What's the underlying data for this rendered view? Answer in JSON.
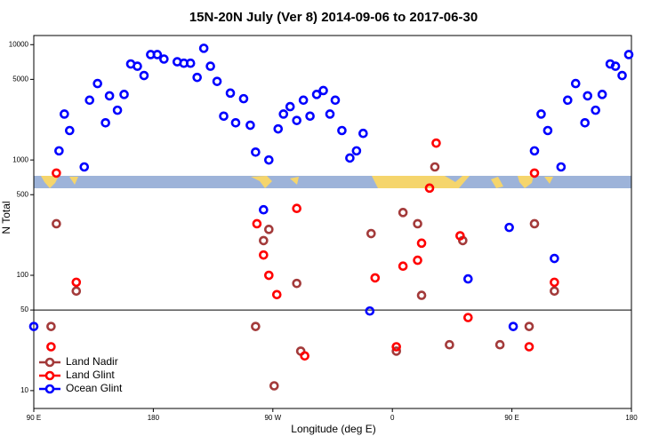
{
  "chart_data": {
    "type": "scatter",
    "title": "15N-20N July (Ver 8)   2014-09-06 to 2017-06-30",
    "x_label": "Longitude (deg E)",
    "y_label": "N Total",
    "ylog": true,
    "legend": "bottom-left",
    "xlim": [
      90,
      540
    ],
    "ylim": [
      7,
      12000
    ],
    "xticks": [
      {
        "value": 90,
        "label": "90 E"
      },
      180,
      {
        "value": 270,
        "label": "90 W"
      },
      {
        "value": 360,
        "label": "0"
      },
      {
        "value": 450,
        "label": "90 E"
      },
      {
        "value": 540,
        "label": "180"
      }
    ],
    "yticks": [
      10,
      50,
      100,
      500,
      1000,
      5000,
      10000
    ],
    "series": [
      {
        "name": "Land Nadir",
        "color": "#a33a3a",
        "x": [
          103,
          107,
          122,
          257,
          263,
          267,
          271,
          288,
          291,
          344,
          363,
          368,
          379,
          382,
          392,
          403,
          413,
          441,
          463,
          467,
          482
        ],
        "values": [
          36,
          280,
          73,
          36,
          200,
          250,
          11,
          85,
          22,
          230,
          22,
          350,
          280,
          67,
          870,
          25,
          200,
          25,
          36,
          280,
          73
        ]
      },
      {
        "name": "Land Glint",
        "color": "#ff0000",
        "x": [
          103,
          107,
          122,
          258,
          263,
          267,
          273,
          288,
          294,
          347,
          363,
          368,
          379,
          382,
          388,
          393,
          411,
          417,
          463,
          467,
          482
        ],
        "values": [
          24,
          770,
          87,
          280,
          150,
          100,
          68,
          380,
          20,
          95,
          24,
          120,
          135,
          190,
          570,
          1400,
          220,
          43,
          24,
          770,
          87
        ]
      },
      {
        "name": "Ocean Glint",
        "color": "#0000ff",
        "x": [
          90,
          109,
          113,
          117,
          128,
          132,
          138,
          144,
          147,
          153,
          158,
          163,
          168,
          173,
          178,
          183,
          188,
          198,
          203,
          208,
          213,
          218,
          223,
          228,
          233,
          238,
          242,
          248,
          253,
          257,
          263,
          267,
          274,
          278,
          283,
          288,
          293,
          298,
          303,
          308,
          313,
          317,
          322,
          328,
          333,
          338,
          343,
          417,
          448,
          451,
          467,
          472,
          477,
          482,
          487,
          492,
          498,
          505,
          507,
          513,
          518,
          524,
          528,
          533,
          538
        ],
        "values": [
          36,
          1200,
          2500,
          1800,
          870,
          3300,
          4600,
          2100,
          3600,
          2700,
          3700,
          6800,
          6500,
          5400,
          8200,
          8200,
          7500,
          7100,
          6900,
          6900,
          5200,
          9300,
          6500,
          4800,
          2400,
          3800,
          2100,
          3400,
          2000,
          1170,
          370,
          1000,
          1860,
          2500,
          2900,
          2200,
          3300,
          2400,
          3700,
          4000,
          2500,
          3300,
          1800,
          1040,
          1200,
          1700,
          49,
          93,
          260,
          36,
          1200,
          2500,
          1800,
          140,
          870,
          3300,
          4600,
          2100,
          3600,
          2700,
          3700,
          6800,
          6500,
          5400,
          8200
        ]
      }
    ]
  }
}
